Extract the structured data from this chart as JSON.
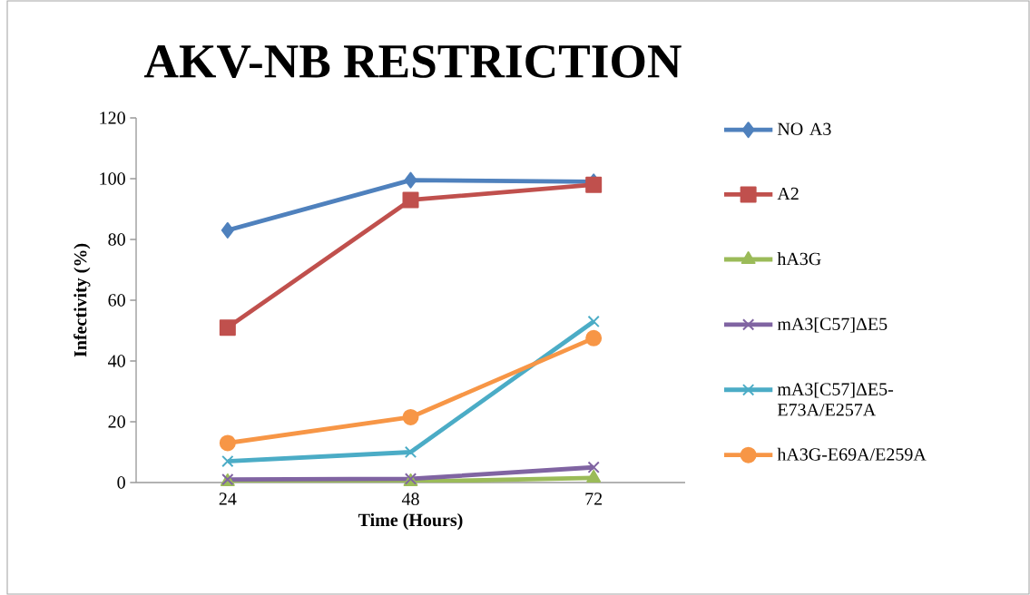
{
  "chart_data": {
    "type": "line",
    "title": "AKV-NB RESTRICTION",
    "xlabel": "Time (Hours)",
    "ylabel": "Infectivity (%)",
    "categories": [
      "24",
      "48",
      "72"
    ],
    "ylim": [
      0,
      120
    ],
    "yticks": [
      0,
      20,
      40,
      60,
      80,
      100,
      120
    ],
    "grid": false,
    "legend": "right",
    "series": [
      {
        "name": "NO A3",
        "color": "#4f81bd",
        "marker": "diamond",
        "values": [
          83,
          99.5,
          99
        ]
      },
      {
        "name": "A2",
        "color": "#c0504d",
        "marker": "square",
        "values": [
          51,
          93,
          98
        ]
      },
      {
        "name": "hA3G",
        "color": "#9bbb59",
        "marker": "triangle",
        "values": [
          0.3,
          0.3,
          1.5
        ]
      },
      {
        "name": "mA3[C57]ΔE5",
        "color": "#8064a2",
        "marker": "cross",
        "values": [
          1,
          1.2,
          5
        ]
      },
      {
        "name": "mA3[C57]ΔE5-E73A/E257A",
        "color": "#4bacc6",
        "marker": "cross",
        "values": [
          7,
          10,
          53
        ]
      },
      {
        "name": "hA3G-E69A/E259A",
        "color": "#f79646",
        "marker": "circle",
        "values": [
          13,
          21.5,
          47.5
        ]
      }
    ]
  }
}
